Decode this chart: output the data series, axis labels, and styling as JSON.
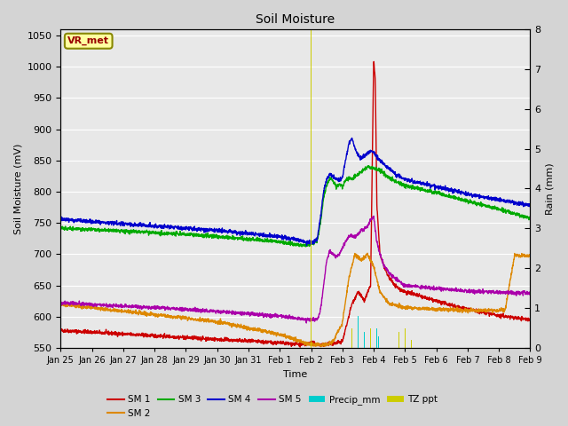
{
  "title": "Soil Moisture",
  "xlabel": "Time",
  "ylabel_left": "Soil Moisture (mV)",
  "ylabel_right": "Rain (mm)",
  "ylim_left": [
    550,
    1060
  ],
  "ylim_right": [
    0.0,
    8.0
  ],
  "bg_color": "#d4d4d4",
  "plot_bg_color": "#e8e8e8",
  "annotation_text": "VR_met",
  "annotation_bg": "#ffffa0",
  "annotation_border": "#888800",
  "annotation_text_color": "#990000",
  "series_colors": {
    "SM1": "#cc0000",
    "SM2": "#dd8800",
    "SM3": "#00aa00",
    "SM4": "#0000cc",
    "SM5": "#aa00aa",
    "Precip_mm": "#00cccc",
    "TZ_ppt": "#cccc00"
  },
  "xtick_labels": [
    "Jan 25",
    "Jan 26",
    "Jan 27",
    "Jan 28",
    "Jan 29",
    "Jan 30",
    "Jan 31",
    "Feb 1",
    "Feb 2",
    "Feb 3",
    "Feb 4",
    "Feb 5",
    "Feb 6",
    "Feb 7",
    "Feb 8",
    "Feb 9"
  ],
  "yticks_left": [
    550,
    600,
    650,
    700,
    750,
    800,
    850,
    900,
    950,
    1000,
    1050
  ],
  "yticks_right": [
    0.0,
    1.0,
    2.0,
    3.0,
    4.0,
    5.0,
    6.0,
    7.0,
    8.0
  ]
}
